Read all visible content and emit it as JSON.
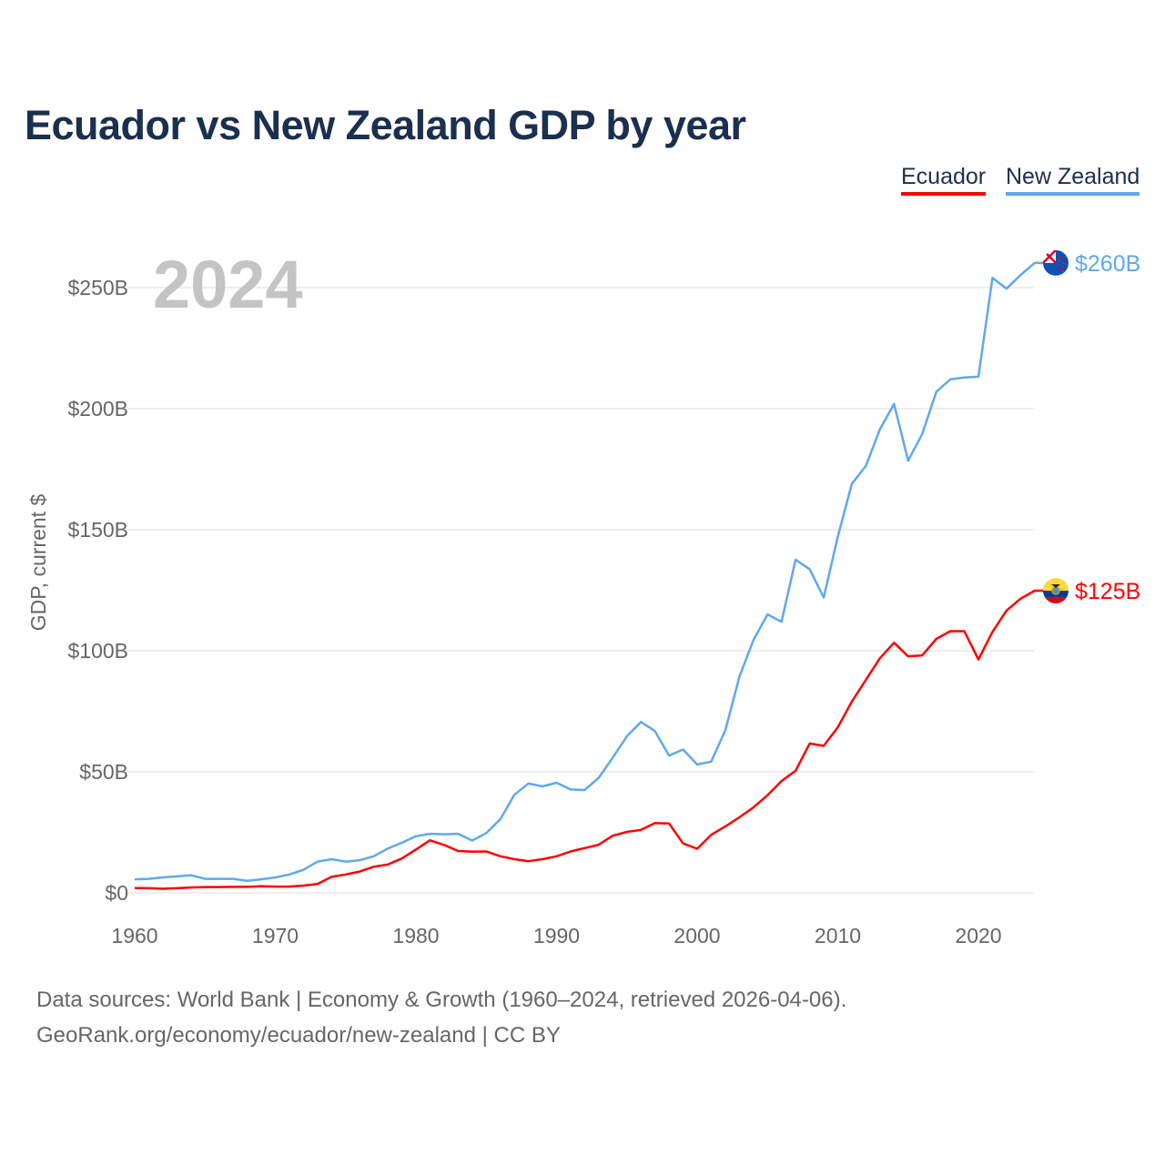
{
  "title": "Ecuador vs New Zealand GDP by year",
  "legend": [
    {
      "label": "Ecuador",
      "color": "#ff0000"
    },
    {
      "label": "New Zealand",
      "color": "#5fa8ee"
    }
  ],
  "footer": {
    "line1": "Data sources: World Bank | Economy & Growth (1960–2024, retrieved 2026-04-06).",
    "line2": "GeoRank.org/economy/ecuador/new-zealand | CC BY"
  },
  "chart_data": {
    "type": "line",
    "title": "Ecuador vs New Zealand GDP by year",
    "ylabel": "GDP, current $",
    "xlabel": "",
    "year_overlay": "2024",
    "xlim": [
      1960,
      2024
    ],
    "ylim": [
      0,
      262
    ],
    "x_ticks": [
      1960,
      1970,
      1980,
      1990,
      2000,
      2010,
      2020
    ],
    "y_ticks": [
      {
        "v": 0,
        "label": "$0"
      },
      {
        "v": 50,
        "label": "$50B"
      },
      {
        "v": 100,
        "label": "$100B"
      },
      {
        "v": 150,
        "label": "$150B"
      },
      {
        "v": 200,
        "label": "$200B"
      },
      {
        "v": 250,
        "label": "$250B"
      }
    ],
    "grid": true,
    "legend_position": "top-right",
    "units": "billions USD",
    "x_start": 1960,
    "series": [
      {
        "name": "Ecuador",
        "color": "#ff0000",
        "end_label": "$125B",
        "flag": "ecuador-flag",
        "values": [
          2.0,
          1.9,
          1.7,
          1.9,
          2.2,
          2.4,
          2.4,
          2.5,
          2.5,
          2.7,
          2.6,
          2.6,
          3.0,
          3.7,
          6.6,
          7.6,
          8.8,
          10.8,
          11.7,
          14.2,
          17.9,
          21.7,
          19.8,
          17.3,
          17.0,
          17.1,
          15.1,
          13.9,
          13.1,
          13.9,
          15.1,
          17.1,
          18.5,
          19.9,
          23.6,
          25.2,
          26.0,
          28.8,
          28.7,
          20.4,
          18.2,
          24.0,
          27.4,
          31.2,
          35.3,
          40.3,
          46.2,
          50.4,
          61.7,
          60.7,
          68.4,
          79.0,
          88.0,
          96.9,
          103.3,
          97.7,
          98.1,
          104.9,
          108.1,
          108.1,
          96.4,
          107.8,
          116.6,
          121.5,
          124.8
        ]
      },
      {
        "name": "New Zealand",
        "color": "#5fa8ee",
        "end_label": "$260B",
        "flag": "new-zealand-flag",
        "values": [
          5.6,
          5.8,
          6.4,
          6.8,
          7.3,
          5.8,
          5.8,
          5.8,
          5.0,
          5.6,
          6.4,
          7.6,
          9.5,
          12.9,
          13.9,
          12.9,
          13.5,
          15.1,
          18.3,
          20.7,
          23.4,
          24.4,
          24.2,
          24.4,
          21.6,
          24.7,
          30.4,
          40.5,
          45.2,
          44.0,
          45.5,
          42.7,
          42.5,
          47.5,
          55.9,
          64.7,
          70.6,
          66.8,
          56.7,
          59.2,
          53.0,
          54.2,
          67.1,
          89.3,
          104.4,
          115.0,
          112.0,
          137.6,
          133.7,
          122.0,
          147.1,
          168.9,
          176.4,
          191.5,
          201.9,
          178.5,
          189.5,
          206.9,
          212.1,
          212.9,
          213.2,
          254.0,
          249.6,
          255.2,
          260.2
        ]
      }
    ]
  }
}
